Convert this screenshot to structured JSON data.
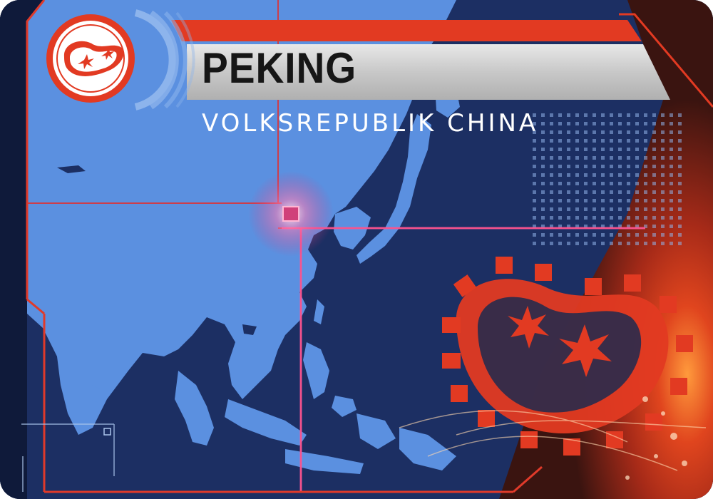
{
  "card": {
    "city": "PEKING",
    "country": "VOLKSREPUBLIK CHINA",
    "icon": "virus-gear-icon"
  },
  "colors": {
    "accent_red": "#e23a22",
    "map_land": "#5b90e0",
    "map_ocean": "#1c2f63",
    "banner_silver": "#cfcfcf",
    "glow_magenta": "#e0307a"
  }
}
